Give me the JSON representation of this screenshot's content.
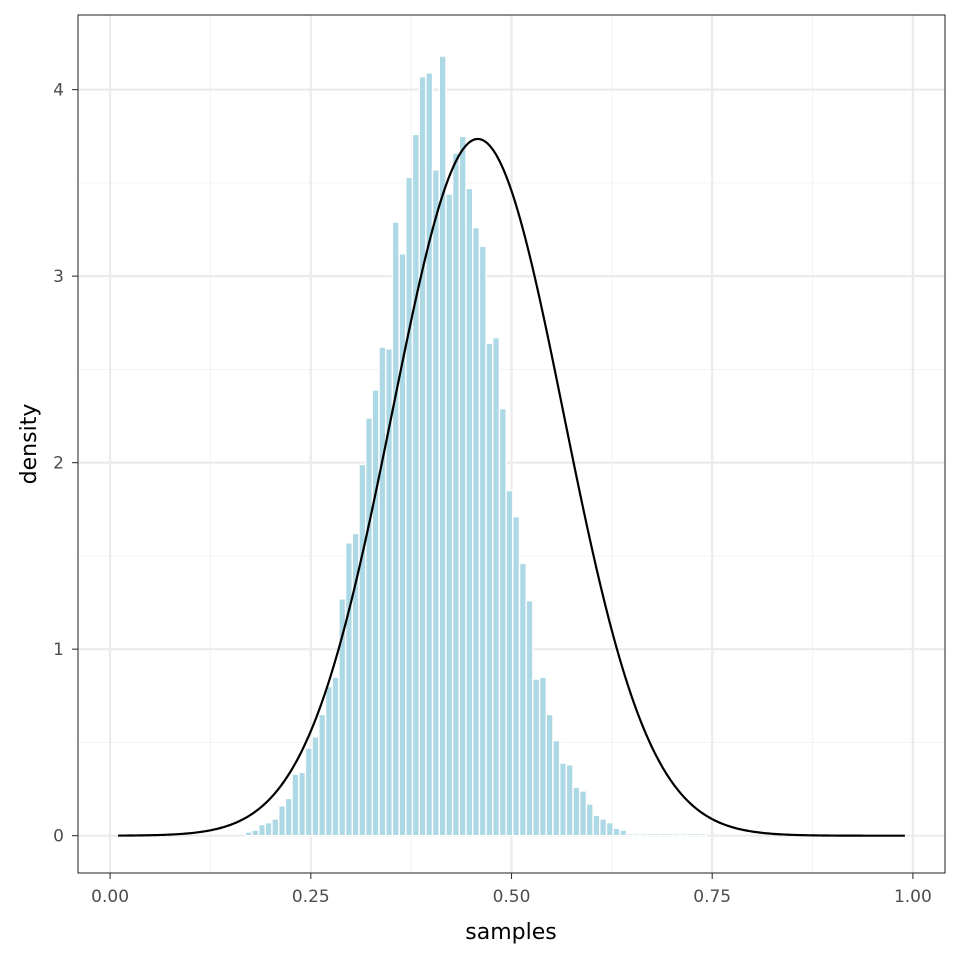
{
  "chart_data": {
    "type": "bar",
    "title": "",
    "xlabel": "samples",
    "ylabel": "density",
    "xlim": [
      -0.04,
      1.04
    ],
    "ylim": [
      -0.2,
      4.4
    ],
    "x_ticks": [
      0,
      0.25,
      0.5,
      0.75,
      1
    ],
    "x_tick_labels": [
      "0.00",
      "0.25",
      "0.50",
      "0.75",
      "1.00"
    ],
    "y_ticks": [
      0,
      1,
      2,
      3,
      4
    ],
    "y_tick_labels": [
      "0",
      "1",
      "2",
      "3",
      "4"
    ],
    "grid": true,
    "legend": "none",
    "colors": {
      "bar_fill": "#add8e6",
      "bar_stroke": "#ffffff",
      "curve": "#000000",
      "grid_major": "#ebebeb",
      "grid_minor": "#f3f3f3",
      "panel_border": "#333333"
    },
    "histogram": {
      "bin_width": 0.00833,
      "bin_centers": [
        0.1725,
        0.1808,
        0.1892,
        0.1975,
        0.2058,
        0.2142,
        0.2225,
        0.2308,
        0.2392,
        0.2475,
        0.2558,
        0.2642,
        0.2725,
        0.2808,
        0.2892,
        0.2975,
        0.3058,
        0.3142,
        0.3225,
        0.3308,
        0.3392,
        0.3475,
        0.3558,
        0.3642,
        0.3725,
        0.3808,
        0.3892,
        0.3975,
        0.4058,
        0.4142,
        0.4225,
        0.4308,
        0.4392,
        0.4475,
        0.4558,
        0.4642,
        0.4725,
        0.4808,
        0.4892,
        0.4975,
        0.5058,
        0.5142,
        0.5225,
        0.5308,
        0.5392,
        0.5475,
        0.5558,
        0.5642,
        0.5725,
        0.5808,
        0.5892,
        0.5975,
        0.6058,
        0.6142,
        0.6225,
        0.6308,
        0.6392,
        0.6475,
        0.6558,
        0.6642,
        0.6725,
        0.6808,
        0.6892,
        0.6975,
        0.7058,
        0.7142,
        0.7225,
        0.7308,
        0.7392
      ],
      "densities": [
        0.02,
        0.03,
        0.06,
        0.07,
        0.09,
        0.16,
        0.2,
        0.33,
        0.34,
        0.47,
        0.53,
        0.65,
        0.8,
        0.85,
        1.27,
        1.57,
        1.62,
        1.99,
        2.24,
        2.39,
        2.62,
        2.61,
        3.29,
        3.12,
        3.53,
        3.76,
        4.07,
        4.09,
        3.57,
        4.18,
        3.44,
        3.66,
        3.75,
        3.47,
        3.26,
        3.16,
        2.64,
        2.67,
        2.29,
        1.85,
        1.71,
        1.46,
        1.26,
        0.84,
        0.85,
        0.65,
        0.51,
        0.39,
        0.38,
        0.26,
        0.24,
        0.17,
        0.11,
        0.09,
        0.07,
        0.04,
        0.03,
        0.01,
        0.01,
        0.01,
        0.01,
        0.01,
        0.01,
        0.01,
        0.01,
        0.01,
        0.01,
        0.01,
        0.01
      ]
    },
    "density_curve": {
      "type": "normal",
      "mean": 0.458,
      "sd": 0.1068,
      "x_range": [
        0.01,
        0.99
      ]
    }
  }
}
